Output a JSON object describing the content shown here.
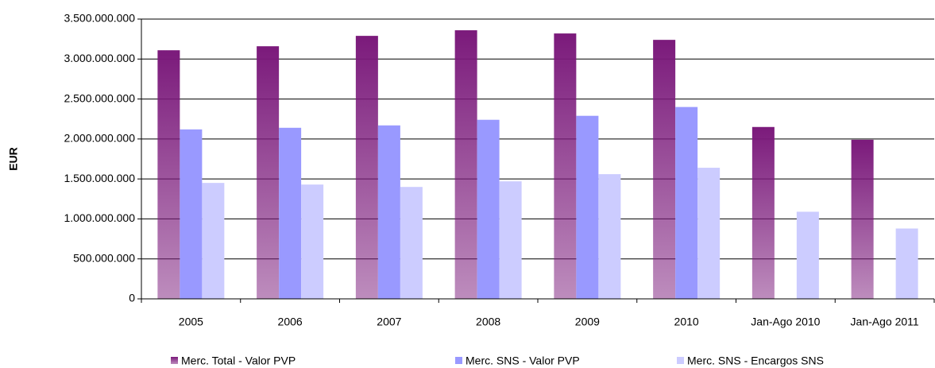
{
  "chart_data": {
    "type": "bar",
    "y_label": "EUR",
    "categories": [
      "2005",
      "2006",
      "2007",
      "2008",
      "2009",
      "2010",
      "Jan-Ago 2010",
      "Jan-Ago 2011"
    ],
    "series": [
      {
        "name": "Merc. Total - Valor PVP",
        "color": "#7b1a7b",
        "gradient": true,
        "values": [
          3110000000,
          3160000000,
          3290000000,
          3360000000,
          3320000000,
          3240000000,
          2150000000,
          1990000000
        ]
      },
      {
        "name": "Merc. SNS - Valor PVP",
        "color": "#9999ff",
        "values": [
          2120000000,
          2140000000,
          2170000000,
          2240000000,
          2290000000,
          2400000000,
          null,
          null
        ]
      },
      {
        "name": "Merc. SNS - Encargos SNS",
        "color": "#ccccff",
        "values": [
          1450000000,
          1430000000,
          1400000000,
          1470000000,
          1560000000,
          1640000000,
          1090000000,
          880000000
        ]
      }
    ],
    "ylim": [
      0,
      3500000000
    ],
    "yticks": [
      0,
      {
        "value": 500000000,
        "label": "500.000.000"
      },
      {
        "value": 1000000000,
        "label": "1.000.000.000"
      },
      {
        "value": 1500000000,
        "label": "1.500.000.000"
      },
      {
        "value": 2000000000,
        "label": "2.000.000.000"
      },
      {
        "value": 2500000000,
        "label": "2.500.000.000"
      },
      {
        "value": 3000000000,
        "label": "3.000.000.000"
      },
      {
        "value": 3500000000,
        "label": "3.500.000.000"
      }
    ],
    "grid": true,
    "legend": "bottom"
  }
}
